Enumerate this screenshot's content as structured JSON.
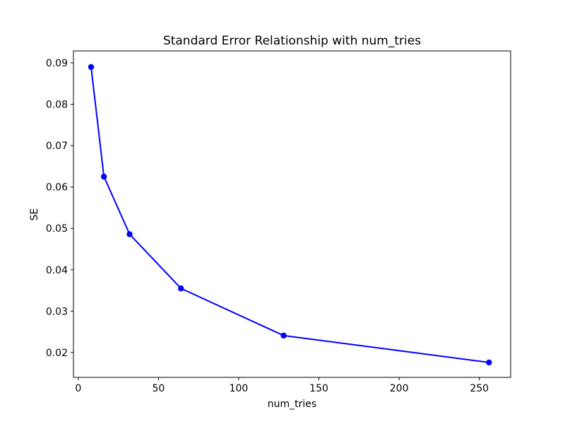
{
  "figure": {
    "title": "Standard Error Relationship with num_tries"
  },
  "chart_data": {
    "type": "line",
    "title": "Standard Error Relationship with num_tries",
    "xlabel": "num_tries",
    "ylabel": "SE",
    "series": [
      {
        "name": "SE",
        "x": [
          8,
          16,
          32,
          64,
          128,
          256
        ],
        "y": [
          0.089,
          0.0625,
          0.0486,
          0.0355,
          0.0241,
          0.0176
        ]
      }
    ],
    "xlim": [
      -3,
      269.5
    ],
    "ylim": [
      0.014,
      0.0929
    ],
    "xticks": [
      0,
      50,
      100,
      150,
      200,
      250
    ],
    "yticks": [
      0.02,
      0.03,
      0.04,
      0.05,
      0.06,
      0.07,
      0.08,
      0.09
    ],
    "ytick_decimals": 2,
    "grid": false,
    "legend_position": "none",
    "line_color": "#0000ff",
    "marker": "circle",
    "marker_color": "#0000ff",
    "background_color": "#ffffff",
    "spine_color": "#000000"
  }
}
